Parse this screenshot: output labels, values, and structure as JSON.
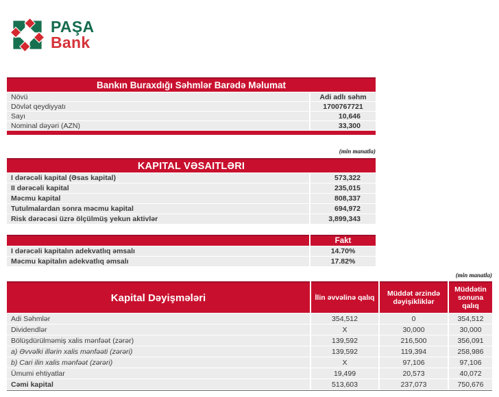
{
  "brand": {
    "logo_line1": "PAŞA",
    "logo_line2": "Bank"
  },
  "colors": {
    "accent_red": "#C8102E",
    "logo_green": "#156B4F",
    "logo_red": "#D5333A",
    "row_bg": "#ECECEC"
  },
  "note": "(min manatla)",
  "shares_table": {
    "title": "Bankın Buraxdığı Səhmlər Barədə Məlumat",
    "rows": [
      {
        "label": "Növü",
        "value": "Adi adlı səhm",
        "align": "center"
      },
      {
        "label": "Dövlət qeydiyyatı",
        "value": "1700767721",
        "align": "center"
      },
      {
        "label": "Sayı",
        "value": "10,646",
        "align": "right"
      },
      {
        "label": "Nominal dəyəri (AZN)",
        "value": "33,300",
        "align": "right"
      }
    ]
  },
  "capital_table": {
    "title": "KAPITAL VƏSAITLƏRI",
    "rows": [
      {
        "label": "I dərəcəli kapital (Əsas kapital)",
        "value": "573,322",
        "align": "right"
      },
      {
        "label": "II dərəcəli kapital",
        "value": "235,015",
        "align": "right"
      },
      {
        "label": "Məcmu kapital",
        "value": "808,337",
        "align": "right"
      },
      {
        "label": "Tutulmalardan sonra məcmu kapital",
        "value": "694,972",
        "align": "right"
      },
      {
        "label": "Risk dərəcəsi üzrə ölçülmüş yekun aktivlər",
        "value": "3,899,343",
        "align": "right"
      }
    ]
  },
  "adequacy_table": {
    "header": "Fakt",
    "rows": [
      {
        "label": "I dərəcəli kapitalın adekvatlıq əmsalı",
        "value": "14.70%",
        "align": "center"
      },
      {
        "label": "Məcmu kapitalın adekvatlıq əmsalı",
        "value": "17.82%",
        "align": "center"
      }
    ]
  },
  "changes_table": {
    "title": "Kapital Dəyişmələri",
    "columns": [
      "İlin əvvəlinə qalıq",
      "Müddət ərzində dəyişikliklər",
      "Müddətin sonuna qalıq"
    ],
    "rows": [
      {
        "label": "Adi Səhmlər",
        "values": [
          "354,512",
          "0",
          "354,512"
        ],
        "style": ""
      },
      {
        "label": "Dividendlər",
        "values": [
          "X",
          "30,000",
          "30,000"
        ],
        "style": ""
      },
      {
        "label": "Bölüşdürülməmiş xalis mənfəət (zərər)",
        "values": [
          "139,592",
          "216,500",
          "356,091"
        ],
        "style": ""
      },
      {
        "label": "a) Əvvəlki illərin xalis mənfəəti (zərəri)",
        "values": [
          "139,592",
          "119,394",
          "258,986"
        ],
        "style": "italic"
      },
      {
        "label": "b) Cari ilin xalis mənfəət (zərəri)",
        "values": [
          "X",
          "97,106",
          "97,106"
        ],
        "style": "italic"
      },
      {
        "label": "Ümumi ehtiyatlar",
        "values": [
          "19,499",
          "20,573",
          "40,072"
        ],
        "style": ""
      },
      {
        "label": "Cəmi kapital",
        "values": [
          "513,603",
          "237,073",
          "750,676"
        ],
        "style": "bold"
      }
    ]
  }
}
